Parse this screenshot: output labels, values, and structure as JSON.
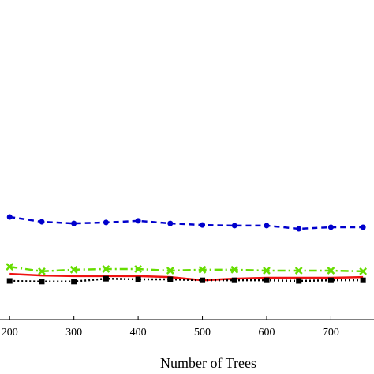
{
  "chart_data": {
    "type": "line",
    "xlabel": "Number of Trees",
    "x": [
      200,
      250,
      300,
      350,
      400,
      450,
      500,
      550,
      600,
      650,
      700,
      750
    ],
    "xlim": [
      185,
      767
    ],
    "xticks": [
      200,
      300,
      400,
      500,
      600,
      700
    ],
    "ylim": [
      0,
      100
    ],
    "series": [
      {
        "color": "#0000cc",
        "dash": "7,5",
        "marker": "circle",
        "values": [
          32.1,
          30.6,
          30.1,
          30.4,
          30.9,
          30.1,
          29.6,
          29.4,
          29.4,
          28.4,
          28.9,
          28.9
        ]
      },
      {
        "color": "#66dd00",
        "dash": "10,4,2,4",
        "marker": "x",
        "values": [
          16.5,
          15.1,
          15.6,
          15.8,
          15.8,
          15.3,
          15.6,
          15.6,
          15.3,
          15.3,
          15.3,
          15.1
        ]
      },
      {
        "color": "#ee1111",
        "dash": "none",
        "marker": "none",
        "values": [
          14.3,
          13.8,
          13.6,
          13.6,
          13.6,
          13.3,
          12.3,
          12.8,
          13.1,
          13.1,
          13.1,
          13.3
        ]
      },
      {
        "color": "#000000",
        "dash": "2,3",
        "marker": "square",
        "values": [
          12.1,
          11.9,
          11.9,
          12.8,
          12.6,
          12.6,
          12.3,
          12.3,
          12.3,
          12.1,
          12.3,
          12.3
        ]
      }
    ]
  }
}
